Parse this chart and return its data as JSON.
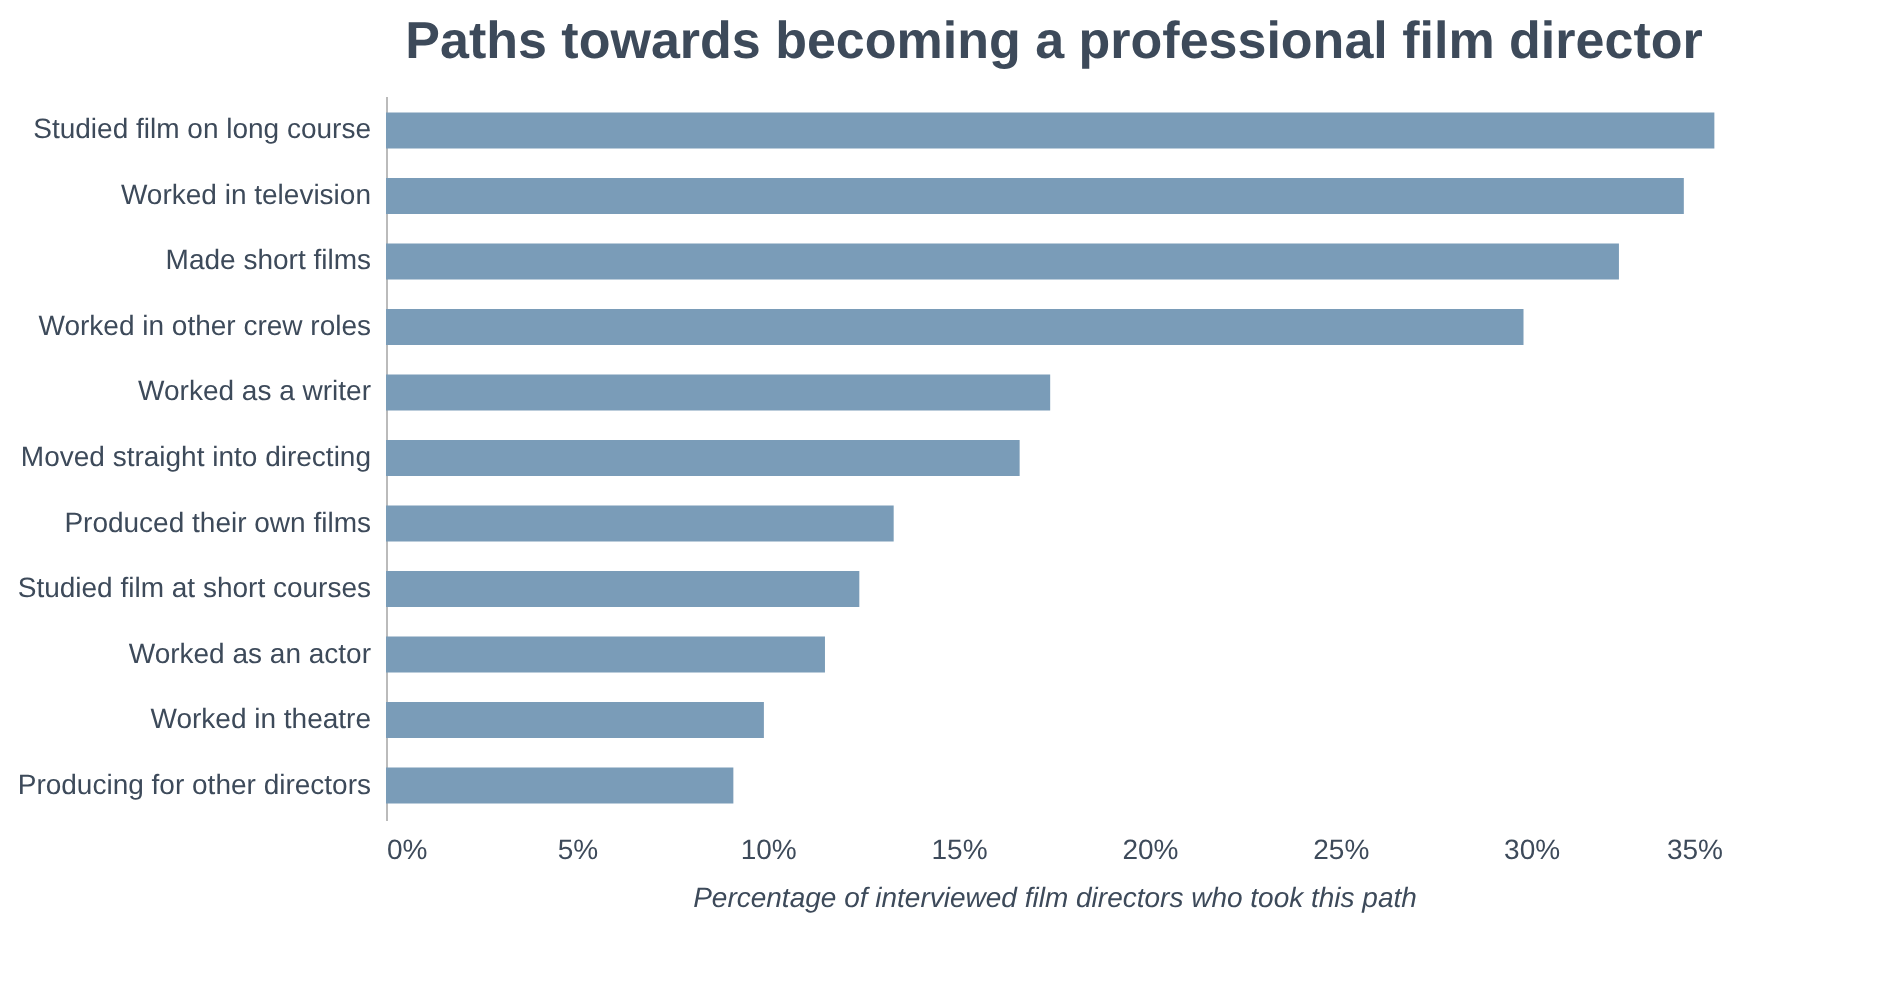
{
  "chart_data": {
    "type": "bar",
    "orientation": "horizontal",
    "title": "Paths towards becoming a professional  film director",
    "xlabel": "Percentage of interviewed film directors who took this path",
    "categories": [
      "Studied film on long course",
      "Worked in television",
      "Made short films",
      "Worked in other crew roles",
      "Worked as a writer",
      "Moved straight into directing",
      "Produced their own films",
      "Studied film at short courses",
      "Worked as an actor",
      "Worked in theatre",
      "Producing for other directors"
    ],
    "values": [
      34.8,
      34.0,
      32.3,
      29.8,
      17.4,
      16.6,
      13.3,
      12.4,
      11.5,
      9.9,
      9.1
    ],
    "color": "#7a9cb8",
    "xlim": [
      0,
      35
    ],
    "xticks": [
      {
        "value": 0,
        "label": "0%"
      },
      {
        "value": 5,
        "label": "5%"
      },
      {
        "value": 10,
        "label": "10%"
      },
      {
        "value": 15,
        "label": "15%"
      },
      {
        "value": 20,
        "label": "20%"
      },
      {
        "value": 25,
        "label": "25%"
      },
      {
        "value": 30,
        "label": "30%"
      },
      {
        "value": 35,
        "label": "35%"
      }
    ],
    "grid": false
  }
}
